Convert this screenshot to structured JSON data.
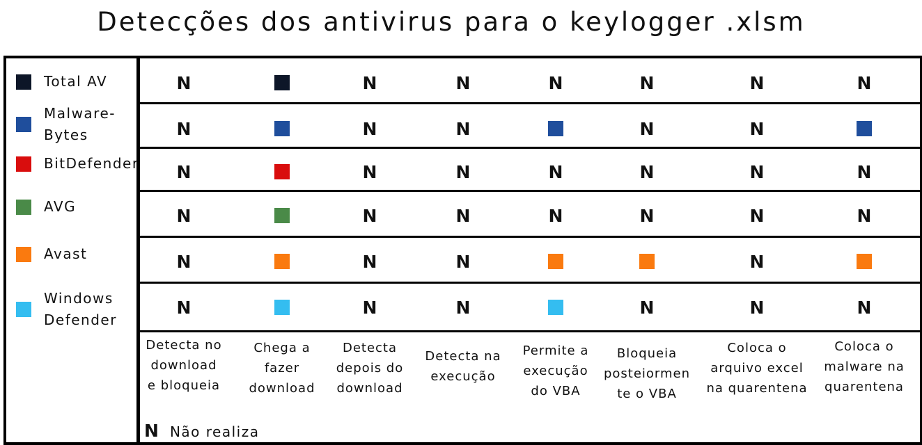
{
  "chart_data": {
    "type": "table",
    "title": "Detecções dos antivirus para o keylogger .xlsm",
    "series": [
      {
        "name": "Total AV",
        "color": "#0d1628"
      },
      {
        "name": "Malware-Bytes",
        "color": "#1f4e9c"
      },
      {
        "name": "BitDefender",
        "color": "#d90d0d"
      },
      {
        "name": "AVG",
        "color": "#4a8a48"
      },
      {
        "name": "Avast",
        "color": "#fa7a0f"
      },
      {
        "name": "Windows Defender",
        "color": "#34bdf0"
      }
    ],
    "legend_labels": [
      [
        "Total AV"
      ],
      [
        "Malware-",
        "Bytes"
      ],
      [
        "BitDefender"
      ],
      [
        "AVG"
      ],
      [
        "Avast"
      ],
      [
        "Windows",
        "Defender"
      ]
    ],
    "columns": [
      [
        "Detecta no",
        "download",
        "e bloqueia"
      ],
      [
        "Chega a",
        "fazer",
        "download"
      ],
      [
        "Detecta",
        "depois do",
        "download"
      ],
      [
        "Detecta na",
        "execução"
      ],
      [
        "Permite a",
        "execução",
        "do VBA"
      ],
      [
        "Bloqueia",
        "posteiormen",
        "te o VBA"
      ],
      [
        "Coloca o",
        "arquivo excel",
        "na quarentena"
      ],
      [
        "Coloca o",
        "malware na",
        "quarentena"
      ]
    ],
    "values": [
      [
        false,
        true,
        false,
        false,
        false,
        false,
        false,
        false
      ],
      [
        false,
        true,
        false,
        false,
        true,
        false,
        false,
        true
      ],
      [
        false,
        true,
        false,
        false,
        false,
        false,
        false,
        false
      ],
      [
        false,
        true,
        false,
        false,
        false,
        false,
        false,
        false
      ],
      [
        false,
        true,
        false,
        false,
        true,
        true,
        false,
        true
      ],
      [
        false,
        true,
        false,
        false,
        true,
        false,
        false,
        false
      ]
    ],
    "no_symbol": "N",
    "no_legend": "Não realiza"
  }
}
